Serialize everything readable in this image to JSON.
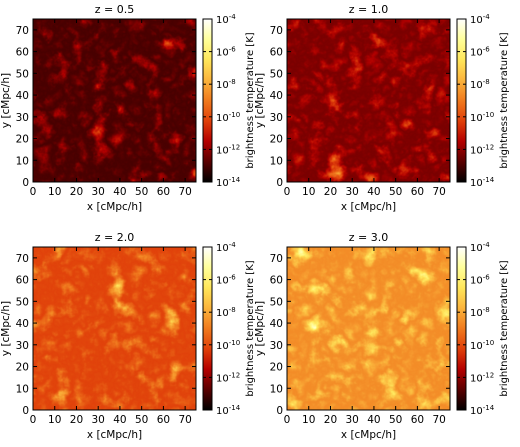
{
  "chart_data": [
    {
      "type": "heatmap",
      "title": "z = 0.5",
      "xlabel": "x [cMpc/h]",
      "ylabel": "y [cMpc/h]",
      "xlim": [
        0,
        75
      ],
      "ylim": [
        0,
        75
      ],
      "xticks": [
        "0",
        "10",
        "20",
        "30",
        "40",
        "50",
        "60",
        "70"
      ],
      "yticks": [
        "0",
        "10",
        "20",
        "30",
        "40",
        "50",
        "60",
        "70"
      ],
      "colorbar": {
        "label": "brightness temperature [K]",
        "scale": "log",
        "range": [
          1e-14,
          0.0001
        ],
        "ticks": [
          {
            "base": "10",
            "exp": "-4"
          },
          {
            "base": "10",
            "exp": "-6"
          },
          {
            "base": "10",
            "exp": "-8"
          },
          {
            "base": "10",
            "exp": "-10"
          },
          {
            "base": "10",
            "exp": "-12"
          },
          {
            "base": "10",
            "exp": "-14"
          }
        ]
      },
      "brightness_level": 0.38
    },
    {
      "type": "heatmap",
      "title": "z = 1.0",
      "xlabel": "x [cMpc/h]",
      "ylabel": "y [cMpc/h]",
      "xlim": [
        0,
        75
      ],
      "ylim": [
        0,
        75
      ],
      "xticks": [
        "0",
        "10",
        "20",
        "30",
        "40",
        "50",
        "60",
        "70"
      ],
      "yticks": [
        "0",
        "10",
        "20",
        "30",
        "40",
        "50",
        "60",
        "70"
      ],
      "colorbar": {
        "label": "brightness temperature [K]",
        "scale": "log",
        "range": [
          1e-14,
          0.0001
        ],
        "ticks": [
          {
            "base": "10",
            "exp": "-4"
          },
          {
            "base": "10",
            "exp": "-6"
          },
          {
            "base": "10",
            "exp": "-8"
          },
          {
            "base": "10",
            "exp": "-10"
          },
          {
            "base": "10",
            "exp": "-12"
          },
          {
            "base": "10",
            "exp": "-14"
          }
        ]
      },
      "brightness_level": 0.45
    },
    {
      "type": "heatmap",
      "title": "z = 2.0",
      "xlabel": "x [cMpc/h]",
      "ylabel": "y [cMpc/h]",
      "xlim": [
        0,
        75
      ],
      "ylim": [
        0,
        75
      ],
      "xticks": [
        "0",
        "10",
        "20",
        "30",
        "40",
        "50",
        "60",
        "70"
      ],
      "yticks": [
        "0",
        "10",
        "20",
        "30",
        "40",
        "50",
        "60",
        "70"
      ],
      "colorbar": {
        "label": "brightness temperature [K]",
        "scale": "log",
        "range": [
          1e-14,
          0.0001
        ],
        "ticks": [
          {
            "base": "10",
            "exp": "-4"
          },
          {
            "base": "10",
            "exp": "-6"
          },
          {
            "base": "10",
            "exp": "-8"
          },
          {
            "base": "10",
            "exp": "-10"
          },
          {
            "base": "10",
            "exp": "-12"
          },
          {
            "base": "10",
            "exp": "-14"
          }
        ]
      },
      "brightness_level": 0.66
    },
    {
      "type": "heatmap",
      "title": "z = 3.0",
      "xlabel": "x [cMpc/h]",
      "ylabel": "y [cMpc/h]",
      "xlim": [
        0,
        75
      ],
      "ylim": [
        0,
        75
      ],
      "xticks": [
        "0",
        "10",
        "20",
        "30",
        "40",
        "50",
        "60",
        "70"
      ],
      "yticks": [
        "0",
        "10",
        "20",
        "30",
        "40",
        "50",
        "60",
        "70"
      ],
      "colorbar": {
        "label": "brightness temperature [K]",
        "scale": "log",
        "range": [
          1e-14,
          0.0001
        ],
        "ticks": [
          {
            "base": "10",
            "exp": "-4"
          },
          {
            "base": "10",
            "exp": "-6"
          },
          {
            "base": "10",
            "exp": "-8"
          },
          {
            "base": "10",
            "exp": "-10"
          },
          {
            "base": "10",
            "exp": "-12"
          },
          {
            "base": "10",
            "exp": "-14"
          }
        ]
      },
      "brightness_level": 0.82
    }
  ],
  "colormap": [
    "#000000",
    "#5a0000",
    "#b40000",
    "#e0400a",
    "#f07a1e",
    "#fbb43c",
    "#ffe65a",
    "#ffff9a",
    "#ffffff"
  ]
}
